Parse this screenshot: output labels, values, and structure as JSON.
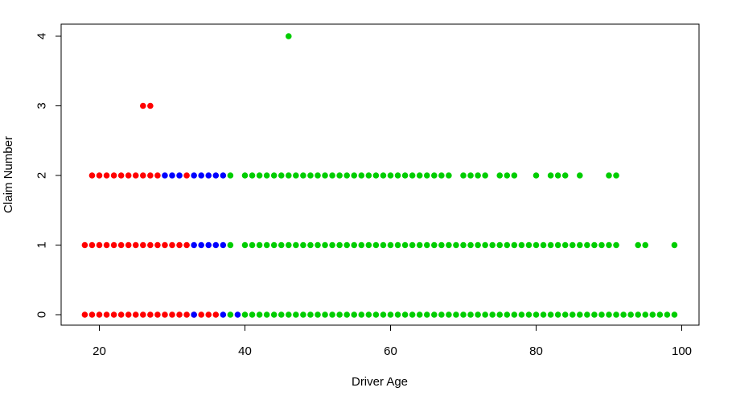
{
  "chart_data": {
    "type": "scatter",
    "title": "",
    "xlabel": "Driver Age",
    "ylabel": "Claim Number",
    "xlim": [
      18,
      99
    ],
    "ylim": [
      0,
      4
    ],
    "x_ticks": [
      20,
      40,
      60,
      80,
      100
    ],
    "y_ticks": [
      0,
      1,
      2,
      3,
      4
    ],
    "grid": false,
    "legend": "none",
    "series": [
      {
        "color": "#ff0000",
        "points": [
          [
            18,
            0
          ],
          [
            19,
            0
          ],
          [
            20,
            0
          ],
          [
            21,
            0
          ],
          [
            22,
            0
          ],
          [
            23,
            0
          ],
          [
            24,
            0
          ],
          [
            25,
            0
          ],
          [
            26,
            0
          ],
          [
            27,
            0
          ],
          [
            28,
            0
          ],
          [
            29,
            0
          ],
          [
            30,
            0
          ],
          [
            31,
            0
          ],
          [
            32,
            0
          ],
          [
            33,
            0
          ],
          [
            34,
            0
          ],
          [
            35,
            0
          ],
          [
            36,
            0
          ],
          [
            18,
            1
          ],
          [
            19,
            1
          ],
          [
            20,
            1
          ],
          [
            21,
            1
          ],
          [
            22,
            1
          ],
          [
            23,
            1
          ],
          [
            24,
            1
          ],
          [
            25,
            1
          ],
          [
            26,
            1
          ],
          [
            27,
            1
          ],
          [
            28,
            1
          ],
          [
            29,
            1
          ],
          [
            30,
            1
          ],
          [
            31,
            1
          ],
          [
            32,
            1
          ],
          [
            19,
            2
          ],
          [
            20,
            2
          ],
          [
            21,
            2
          ],
          [
            22,
            2
          ],
          [
            23,
            2
          ],
          [
            24,
            2
          ],
          [
            25,
            2
          ],
          [
            26,
            2
          ],
          [
            27,
            2
          ],
          [
            28,
            2
          ],
          [
            32,
            2
          ],
          [
            26,
            3
          ],
          [
            27,
            3
          ]
        ]
      },
      {
        "color": "#0000ff",
        "points": [
          [
            33,
            0
          ],
          [
            37,
            0
          ],
          [
            39,
            0
          ],
          [
            33,
            1
          ],
          [
            34,
            1
          ],
          [
            35,
            1
          ],
          [
            36,
            1
          ],
          [
            37,
            1
          ],
          [
            29,
            2
          ],
          [
            30,
            2
          ],
          [
            31,
            2
          ],
          [
            33,
            2
          ],
          [
            34,
            2
          ],
          [
            35,
            2
          ],
          [
            36,
            2
          ],
          [
            37,
            2
          ]
        ]
      },
      {
        "color": "#00cd00",
        "points": [
          [
            38,
            0
          ],
          [
            40,
            0
          ],
          [
            41,
            0
          ],
          [
            42,
            0
          ],
          [
            43,
            0
          ],
          [
            44,
            0
          ],
          [
            45,
            0
          ],
          [
            46,
            0
          ],
          [
            47,
            0
          ],
          [
            48,
            0
          ],
          [
            49,
            0
          ],
          [
            50,
            0
          ],
          [
            51,
            0
          ],
          [
            52,
            0
          ],
          [
            53,
            0
          ],
          [
            54,
            0
          ],
          [
            55,
            0
          ],
          [
            56,
            0
          ],
          [
            57,
            0
          ],
          [
            58,
            0
          ],
          [
            59,
            0
          ],
          [
            60,
            0
          ],
          [
            61,
            0
          ],
          [
            62,
            0
          ],
          [
            63,
            0
          ],
          [
            64,
            0
          ],
          [
            65,
            0
          ],
          [
            66,
            0
          ],
          [
            67,
            0
          ],
          [
            68,
            0
          ],
          [
            69,
            0
          ],
          [
            70,
            0
          ],
          [
            71,
            0
          ],
          [
            72,
            0
          ],
          [
            73,
            0
          ],
          [
            74,
            0
          ],
          [
            75,
            0
          ],
          [
            76,
            0
          ],
          [
            77,
            0
          ],
          [
            78,
            0
          ],
          [
            79,
            0
          ],
          [
            80,
            0
          ],
          [
            81,
            0
          ],
          [
            82,
            0
          ],
          [
            83,
            0
          ],
          [
            84,
            0
          ],
          [
            85,
            0
          ],
          [
            86,
            0
          ],
          [
            87,
            0
          ],
          [
            88,
            0
          ],
          [
            89,
            0
          ],
          [
            90,
            0
          ],
          [
            91,
            0
          ],
          [
            92,
            0
          ],
          [
            93,
            0
          ],
          [
            94,
            0
          ],
          [
            95,
            0
          ],
          [
            96,
            0
          ],
          [
            97,
            0
          ],
          [
            98,
            0
          ],
          [
            99,
            0
          ],
          [
            38,
            1
          ],
          [
            40,
            1
          ],
          [
            41,
            1
          ],
          [
            42,
            1
          ],
          [
            43,
            1
          ],
          [
            44,
            1
          ],
          [
            45,
            1
          ],
          [
            46,
            1
          ],
          [
            47,
            1
          ],
          [
            48,
            1
          ],
          [
            49,
            1
          ],
          [
            50,
            1
          ],
          [
            51,
            1
          ],
          [
            52,
            1
          ],
          [
            53,
            1
          ],
          [
            54,
            1
          ],
          [
            55,
            1
          ],
          [
            56,
            1
          ],
          [
            57,
            1
          ],
          [
            58,
            1
          ],
          [
            59,
            1
          ],
          [
            60,
            1
          ],
          [
            61,
            1
          ],
          [
            62,
            1
          ],
          [
            63,
            1
          ],
          [
            64,
            1
          ],
          [
            65,
            1
          ],
          [
            66,
            1
          ],
          [
            67,
            1
          ],
          [
            68,
            1
          ],
          [
            69,
            1
          ],
          [
            70,
            1
          ],
          [
            71,
            1
          ],
          [
            72,
            1
          ],
          [
            73,
            1
          ],
          [
            74,
            1
          ],
          [
            75,
            1
          ],
          [
            76,
            1
          ],
          [
            77,
            1
          ],
          [
            78,
            1
          ],
          [
            79,
            1
          ],
          [
            80,
            1
          ],
          [
            81,
            1
          ],
          [
            82,
            1
          ],
          [
            83,
            1
          ],
          [
            84,
            1
          ],
          [
            85,
            1
          ],
          [
            86,
            1
          ],
          [
            87,
            1
          ],
          [
            88,
            1
          ],
          [
            89,
            1
          ],
          [
            90,
            1
          ],
          [
            91,
            1
          ],
          [
            94,
            1
          ],
          [
            95,
            1
          ],
          [
            99,
            1
          ],
          [
            38,
            2
          ],
          [
            40,
            2
          ],
          [
            41,
            2
          ],
          [
            42,
            2
          ],
          [
            43,
            2
          ],
          [
            44,
            2
          ],
          [
            45,
            2
          ],
          [
            46,
            2
          ],
          [
            47,
            2
          ],
          [
            48,
            2
          ],
          [
            49,
            2
          ],
          [
            50,
            2
          ],
          [
            51,
            2
          ],
          [
            52,
            2
          ],
          [
            53,
            2
          ],
          [
            54,
            2
          ],
          [
            55,
            2
          ],
          [
            56,
            2
          ],
          [
            57,
            2
          ],
          [
            58,
            2
          ],
          [
            59,
            2
          ],
          [
            60,
            2
          ],
          [
            61,
            2
          ],
          [
            62,
            2
          ],
          [
            63,
            2
          ],
          [
            64,
            2
          ],
          [
            65,
            2
          ],
          [
            66,
            2
          ],
          [
            67,
            2
          ],
          [
            68,
            2
          ],
          [
            70,
            2
          ],
          [
            71,
            2
          ],
          [
            72,
            2
          ],
          [
            73,
            2
          ],
          [
            75,
            2
          ],
          [
            76,
            2
          ],
          [
            77,
            2
          ],
          [
            80,
            2
          ],
          [
            82,
            2
          ],
          [
            83,
            2
          ],
          [
            84,
            2
          ],
          [
            86,
            2
          ],
          [
            90,
            2
          ],
          [
            91,
            2
          ],
          [
            46,
            4
          ]
        ]
      }
    ]
  }
}
